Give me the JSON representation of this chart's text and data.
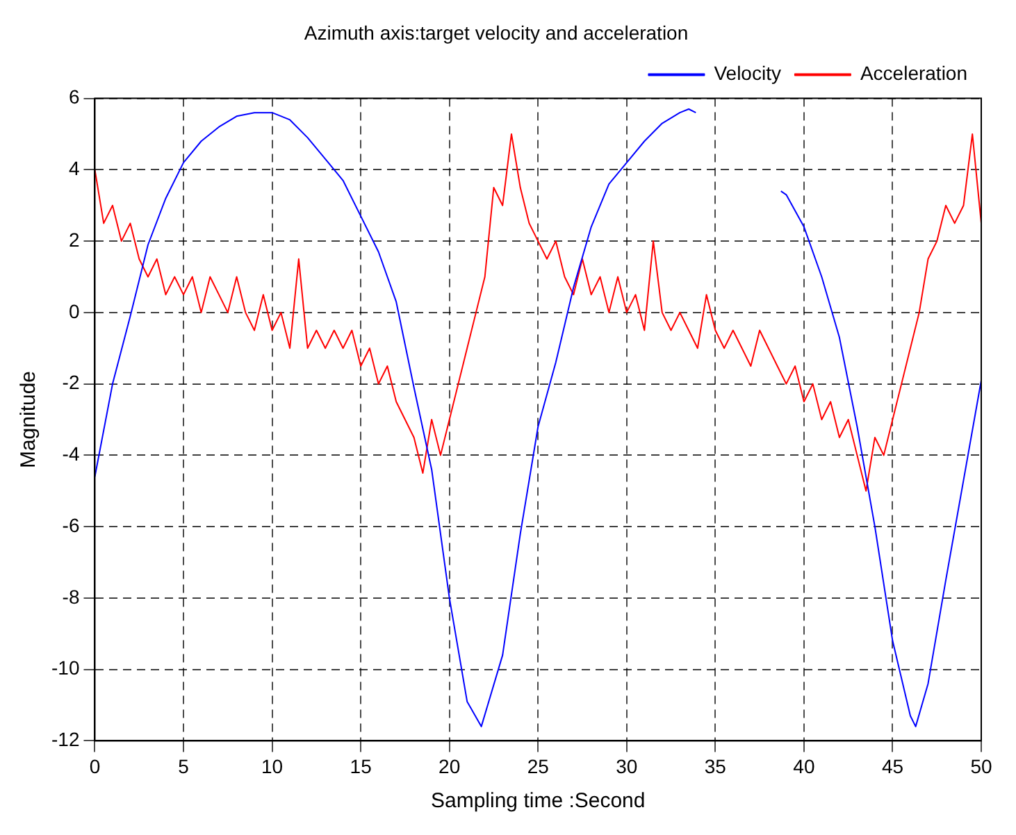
{
  "chart_data": {
    "type": "line",
    "title": "Azimuth axis:target velocity and acceleration",
    "xlabel": "Sampling time :Second",
    "ylabel": "Magnitude",
    "xlim": [
      0,
      50
    ],
    "xticks": [
      0,
      5,
      10,
      15,
      20,
      25,
      30,
      35,
      40,
      45,
      50
    ],
    "ylim": [
      -12,
      6
    ],
    "yticks": [
      -12,
      -10,
      -8,
      -6,
      -4,
      -2,
      0,
      2,
      4,
      6
    ],
    "grid": true,
    "legend": "top right",
    "marker": "none",
    "line_style": "solid",
    "series": [
      {
        "name": "Velocity",
        "color": "#0000ff",
        "x": [
          0,
          1,
          2,
          3,
          4,
          5,
          6,
          7,
          8,
          9,
          10,
          11,
          12,
          13,
          14,
          15,
          16,
          17,
          18,
          19,
          20,
          21,
          21.8,
          23,
          24,
          25,
          26,
          27,
          28,
          29,
          30,
          31,
          32,
          33,
          33.5,
          33.9,
          36,
          38.7,
          39,
          40,
          41,
          42,
          43,
          44,
          45,
          46,
          46.3,
          47,
          48,
          49,
          50
        ],
        "values": [
          -4.6,
          -2.0,
          -0.1,
          1.9,
          3.2,
          4.2,
          4.8,
          5.2,
          5.5,
          5.6,
          5.6,
          5.4,
          4.9,
          4.3,
          3.7,
          2.7,
          1.7,
          0.3,
          -2.1,
          -4.4,
          -8.0,
          -10.9,
          -11.6,
          -9.6,
          -6.2,
          -3.2,
          -1.4,
          0.7,
          2.4,
          3.6,
          4.2,
          4.8,
          5.3,
          5.6,
          5.7,
          5.6,
          null,
          3.4,
          3.3,
          2.4,
          1.0,
          -0.7,
          -3.2,
          -6.0,
          -9.2,
          -11.3,
          -11.6,
          -10.4,
          -7.5,
          -4.7,
          -1.9
        ]
      },
      {
        "name": "Acceleration",
        "color": "#ff0000",
        "x": [
          0,
          0.5,
          1,
          1.5,
          2,
          2.5,
          3,
          3.5,
          4,
          4.5,
          5,
          5.5,
          6,
          6.5,
          7,
          7.5,
          8,
          8.5,
          9,
          9.5,
          10,
          10.5,
          11,
          11.5,
          12,
          12.5,
          13,
          13.5,
          14,
          14.5,
          15,
          15.5,
          16,
          16.5,
          17,
          17.5,
          18,
          18.5,
          19,
          19.5,
          20,
          20.5,
          21,
          21.5,
          22,
          22.5,
          23,
          23.5,
          24,
          24.5,
          25,
          25.5,
          26,
          26.5,
          27,
          27.5,
          28,
          28.5,
          29,
          29.5,
          30,
          30.5,
          31,
          31.5,
          32,
          32.5,
          33,
          33.5,
          34,
          34.5,
          35,
          35.5,
          36,
          36.5,
          37,
          37.5,
          38,
          38.5,
          39,
          39.5,
          40,
          40.5,
          41,
          41.5,
          42,
          42.5,
          43,
          43.5,
          44,
          44.5,
          45,
          45.5,
          46,
          46.5,
          47,
          47.5,
          48,
          48.5,
          49,
          49.5,
          50
        ],
        "values": [
          4.0,
          2.5,
          3.0,
          2.0,
          2.5,
          1.5,
          1.0,
          1.5,
          0.5,
          1.0,
          0.5,
          1.0,
          0.0,
          1.0,
          0.5,
          0.0,
          1.0,
          0.0,
          -0.5,
          0.5,
          -0.5,
          0.0,
          -1.0,
          1.5,
          -1.0,
          -0.5,
          -1.0,
          -0.5,
          -1.0,
          -0.5,
          -1.5,
          -1.0,
          -2.0,
          -1.5,
          -2.5,
          -3.0,
          -3.5,
          -4.5,
          -3.0,
          -4.0,
          -3.0,
          -2.0,
          -1.0,
          0.0,
          1.0,
          3.5,
          3.0,
          5.0,
          3.5,
          2.5,
          2.0,
          1.5,
          2.0,
          1.0,
          0.5,
          1.5,
          0.5,
          1.0,
          0.0,
          1.0,
          0.0,
          0.5,
          -0.5,
          2.0,
          0.0,
          -0.5,
          0.0,
          -0.5,
          -1.0,
          0.5,
          -0.5,
          -1.0,
          -0.5,
          -1.0,
          -1.5,
          -0.5,
          -1.0,
          -1.5,
          -2.0,
          -1.5,
          -2.5,
          -2.0,
          -3.0,
          -2.5,
          -3.5,
          -3.0,
          -4.0,
          -5.0,
          -3.5,
          -4.0,
          -3.0,
          -2.0,
          -1.0,
          0.0,
          1.5,
          2.0,
          3.0,
          2.5,
          3.0,
          5.0,
          2.5
        ]
      }
    ]
  }
}
